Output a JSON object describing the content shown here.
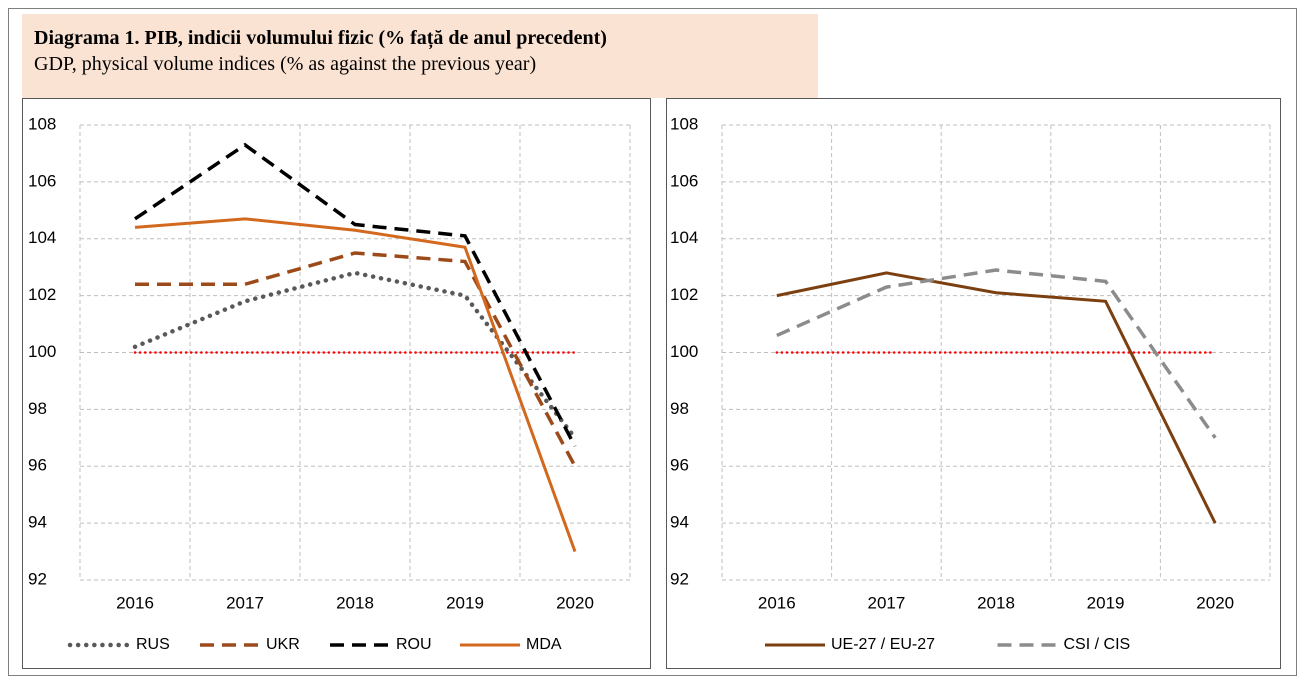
{
  "header": {
    "title": "Diagrama 1. PIB, indicii volumului fizic (% față de anul precedent)",
    "subtitle": "GDP, physical volume indices (% as against the previous year)"
  },
  "chart_data": [
    {
      "type": "line",
      "categories": [
        "2016",
        "2017",
        "2018",
        "2019",
        "2020"
      ],
      "ylim": [
        92,
        108
      ],
      "yticks": [
        92,
        94,
        96,
        98,
        100,
        102,
        104,
        106,
        108
      ],
      "grid": true,
      "legend": "bottom",
      "reference_line": {
        "value": 100,
        "color": "#ff0000",
        "dash": "dot"
      },
      "series": [
        {
          "name": "RUS",
          "color": "#595959",
          "dash": "dot",
          "values": [
            100.2,
            101.8,
            102.8,
            102.0,
            97.0
          ]
        },
        {
          "name": "UKR",
          "color": "#9c4a1a",
          "dash": "dash",
          "values": [
            102.4,
            102.4,
            103.5,
            103.2,
            96.0
          ]
        },
        {
          "name": "ROU",
          "color": "#000000",
          "dash": "dash",
          "values": [
            104.7,
            107.3,
            104.5,
            104.1,
            96.7
          ]
        },
        {
          "name": "MDA",
          "color": "#d2691e",
          "dash": "solid",
          "values": [
            104.4,
            104.7,
            104.3,
            103.7,
            93.0
          ]
        }
      ]
    },
    {
      "type": "line",
      "categories": [
        "2016",
        "2017",
        "2018",
        "2019",
        "2020"
      ],
      "ylim": [
        92,
        108
      ],
      "yticks": [
        92,
        94,
        96,
        98,
        100,
        102,
        104,
        106,
        108
      ],
      "grid": true,
      "legend": "bottom",
      "reference_line": {
        "value": 100,
        "color": "#ff0000",
        "dash": "dot"
      },
      "series": [
        {
          "name": "UE-27 / EU-27",
          "color": "#7b3f10",
          "dash": "solid",
          "values": [
            102.0,
            102.8,
            102.1,
            101.8,
            94.0
          ]
        },
        {
          "name": "CSI / CIS",
          "color": "#8c8c8c",
          "dash": "dash",
          "values": [
            100.6,
            102.3,
            102.9,
            102.5,
            97.0
          ]
        }
      ]
    }
  ]
}
